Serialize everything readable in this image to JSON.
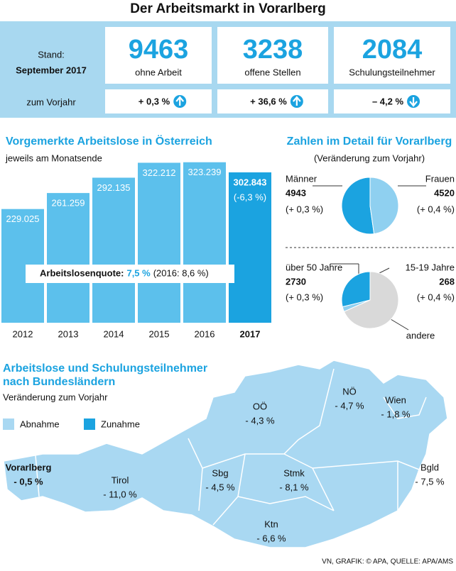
{
  "title": "Der Arbeitsmarkt in Vorarlberg",
  "stats": {
    "stand_label": "Stand:",
    "stand_date": "September 2017",
    "change_label": "zum Vorjahr",
    "items": [
      {
        "value": 9463,
        "label": "ohne Arbeit",
        "change": "+ 0,3 %",
        "direction": "up"
      },
      {
        "value": 3238,
        "label": "offene Stellen",
        "change": "+ 36,6 %",
        "direction": "up"
      },
      {
        "value": 2084,
        "label": "Schulungsteilnehmer",
        "change": "– 4,2 %",
        "direction": "down"
      }
    ]
  },
  "chart_data": [
    {
      "type": "bar",
      "title": "Vorgemerkte Arbeitslose in Österreich",
      "subtitle": "jeweils am Monatsende",
      "categories": [
        "2012",
        "2013",
        "2014",
        "2015",
        "2016",
        "2017"
      ],
      "values": [
        229025,
        261259,
        292135,
        322212,
        323239,
        302843
      ],
      "value_labels": [
        "229.025",
        "261.259",
        "292.135",
        "322.212",
        "323.239",
        "302.843"
      ],
      "highlight_change": "(-6,3 %)",
      "annotation": {
        "label": "Arbeitslosenquote:",
        "value": "7,5 %",
        "note": "(2016: 8,6 %)"
      },
      "color": "#5cc0ec",
      "highlight_color": "#1ba3e0",
      "ylim": [
        0,
        340000
      ]
    },
    {
      "type": "pie",
      "title": "Zahlen im Detail für Vorarlberg",
      "subtitle": "(Veränderung zum Vorjahr)",
      "categories": [
        "Männer",
        "Frauen"
      ],
      "values": [
        4943,
        4520
      ],
      "changes": [
        "(+ 0,3 %)",
        "(+ 0,4 %)"
      ],
      "colors": [
        "#1ba3e0",
        "#8fd0f0"
      ]
    },
    {
      "type": "pie",
      "categories": [
        "über 50 Jahre",
        "15-19 Jahre",
        "andere"
      ],
      "values": [
        2730,
        268,
        6465
      ],
      "changes": [
        "(+ 0,3 %)",
        "(+ 0,4 %)"
      ],
      "colors": [
        "#1ba3e0",
        "#8fd0f0",
        "#d9d9d9"
      ]
    }
  ],
  "map": {
    "title": "Arbeitslose und Schulungsteilnehmer",
    "title2": "nach Bundesländern",
    "subtitle": "Veränderung zum Vorjahr",
    "legend": [
      {
        "label": "Abnahme",
        "color": "#a9d8f2"
      },
      {
        "label": "Zunahme",
        "color": "#1ba3e0"
      }
    ],
    "regions": [
      {
        "name": "Vorarlberg",
        "change": "- 0,5 %"
      },
      {
        "name": "Tirol",
        "change": "- 11,0 %"
      },
      {
        "name": "Sbg",
        "change": "- 4,5 %"
      },
      {
        "name": "OÖ",
        "change": "- 4,3 %"
      },
      {
        "name": "NÖ",
        "change": "- 4,7 %"
      },
      {
        "name": "Wien",
        "change": "- 1,8 %"
      },
      {
        "name": "Bgld",
        "change": "- 7,5 %"
      },
      {
        "name": "Stmk",
        "change": "- 8,1 %"
      },
      {
        "name": "Ktn",
        "change": "- 6,6 %"
      }
    ]
  },
  "footer": "VN, GRAFIK: © APA, QUELLE: APA/AMS"
}
